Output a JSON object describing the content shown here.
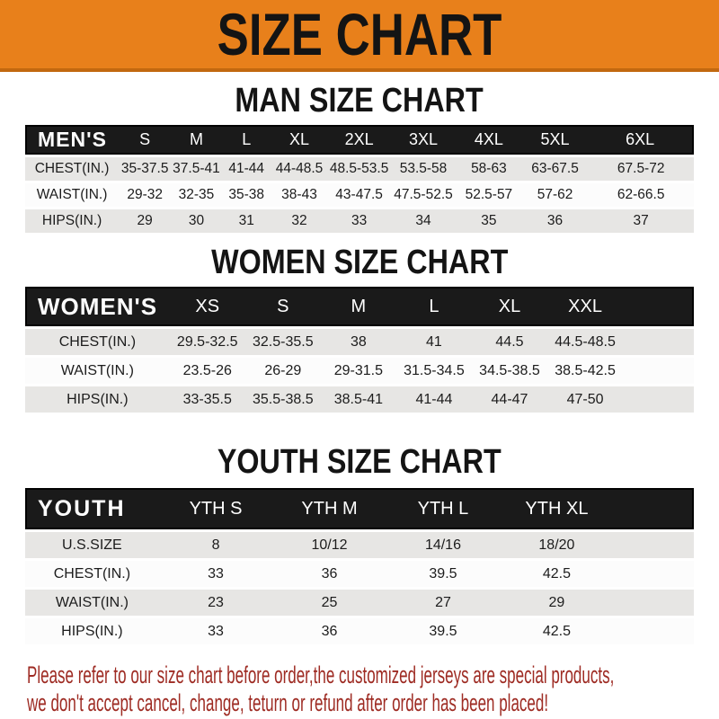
{
  "banner": {
    "title": "SIZE CHART"
  },
  "colors": {
    "banner_orange": "#E8801B",
    "banner_edge": "#C2680F",
    "header_bar_black": "#1A1A1A",
    "row_gray": "#E7E6E4",
    "row_white": "#FCFCFC",
    "heading_black": "#141414",
    "notice_red": "#9E2B23"
  },
  "sections": [
    {
      "heading": "MAN SIZE CHART",
      "table": {
        "header": [
          "MEN'S",
          "S",
          "M",
          "L",
          "XL",
          "2XL",
          "3XL",
          "4XL",
          "5XL",
          "6XL"
        ],
        "rows": [
          {
            "label": "CHEST(IN.)",
            "values": [
              "35-37.5",
              "37.5-41",
              "41-44",
              "44-48.5",
              "48.5-53.5",
              "53.5-58",
              "58-63",
              "63-67.5",
              "67.5-72"
            ]
          },
          {
            "label": "WAIST(IN.)",
            "values": [
              "29-32",
              "32-35",
              "35-38",
              "38-43",
              "43-47.5",
              "47.5-52.5",
              "52.5-57",
              "57-62",
              "62-66.5"
            ]
          },
          {
            "label": "HIPS(IN.)",
            "values": [
              "29",
              "30",
              "31",
              "32",
              "33",
              "34",
              "35",
              "36",
              "37"
            ]
          }
        ]
      }
    },
    {
      "heading": "WOMEN SIZE CHART",
      "table": {
        "header": [
          "WOMEN'S",
          "XS",
          "S",
          "M",
          "L",
          "XL",
          "XXL"
        ],
        "rows": [
          {
            "label": "CHEST(IN.)",
            "values": [
              "29.5-32.5",
              "32.5-35.5",
              "38",
              "41",
              "44.5",
              "44.5-48.5"
            ]
          },
          {
            "label": "WAIST(IN.)",
            "values": [
              "23.5-26",
              "26-29",
              "29-31.5",
              "31.5-34.5",
              "34.5-38.5",
              "38.5-42.5"
            ]
          },
          {
            "label": "HIPS(IN.)",
            "values": [
              "33-35.5",
              "35.5-38.5",
              "38.5-41",
              "41-44",
              "44-47",
              "47-50"
            ]
          }
        ]
      }
    },
    {
      "heading": "YOUTH SIZE CHART",
      "table": {
        "header": [
          "YOUTH",
          "YTH S",
          "YTH M",
          "YTH L",
          "YTH XL"
        ],
        "rows": [
          {
            "label": "U.S.SIZE",
            "values": [
              "8",
              "10/12",
              "14/16",
              "18/20"
            ]
          },
          {
            "label": "CHEST(IN.)",
            "values": [
              "33",
              "36",
              "39.5",
              "42.5"
            ]
          },
          {
            "label": "WAIST(IN.)",
            "values": [
              "23",
              "25",
              "27",
              "29"
            ]
          },
          {
            "label": "HIPS(IN.)",
            "values": [
              "33",
              "36",
              "39.5",
              "42.5"
            ]
          }
        ]
      }
    }
  ],
  "notice": {
    "line1": "Please refer to our size chart before order,the customized jerseys are special products,",
    "line2": "we don't accept cancel, change, teturn or refund after order has been placed!"
  }
}
